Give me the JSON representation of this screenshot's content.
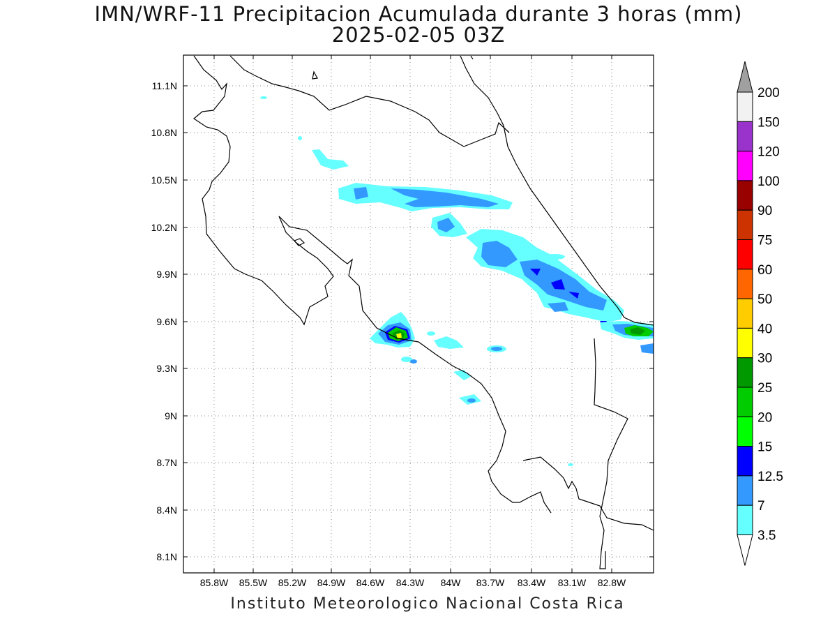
{
  "title": {
    "line1": "IMN/WRF-11 Precipitacion Acumulada durante 3 horas (mm)",
    "line2": "2025-02-05 03Z"
  },
  "footer": "Instituto Meteorologico Nacional Costa Rica",
  "map": {
    "lon_range": [
      -86.0,
      -82.64
    ],
    "lat_range": [
      8.0,
      11.32
    ],
    "x_ticks": [
      "85.8W",
      "85.5W",
      "85.2W",
      "84.9W",
      "84.6W",
      "84.3W",
      "84W",
      "83.7W",
      "83.4W",
      "83.1W",
      "82.8W"
    ],
    "y_ticks": [
      "11.1N",
      "10.8N",
      "10.5N",
      "10.2N",
      "9.9N",
      "9.6N",
      "9.3N",
      "9N",
      "8.7N",
      "8.4N",
      "8.1N"
    ],
    "grid": "dotted"
  },
  "colorbar": {
    "labels": [
      "200",
      "150",
      "120",
      "100",
      "90",
      "75",
      "60",
      "50",
      "40",
      "30",
      "25",
      "20",
      "15",
      "12.5",
      "7",
      "3.5"
    ],
    "colors": [
      "#f2f2f2",
      "#9933cc",
      "#ff00ff",
      "#990000",
      "#cc3300",
      "#ff0000",
      "#ff6600",
      "#ffcc00",
      "#ffff00",
      "#009900",
      "#00cc00",
      "#00ff00",
      "#0000ff",
      "#3399ff",
      "#66ffff"
    ],
    "top_arrow_color": "#a0a0a0",
    "bottom_arrow_color": "#ffffff"
  }
}
